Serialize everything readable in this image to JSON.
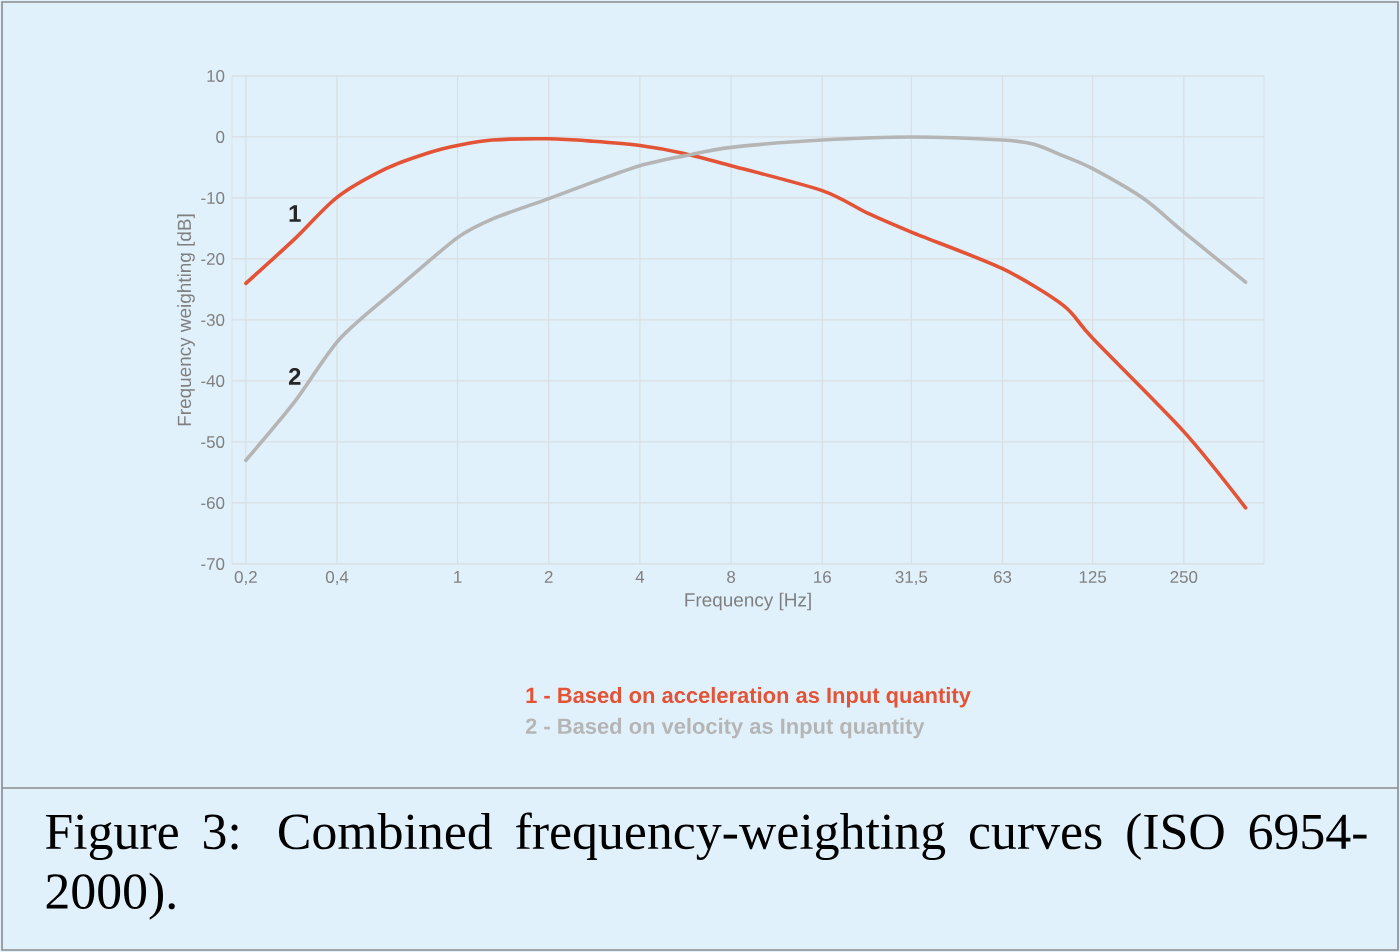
{
  "chart_data": {
    "type": "line",
    "xlabel": "Frequency [Hz]",
    "ylabel": "Frequency weighting [dB]",
    "log": "x",
    "xlim": [
      0.18,
      460
    ],
    "ylim": [
      -70,
      10
    ],
    "xticks": [
      {
        "value": 0.2,
        "label": "0,2"
      },
      {
        "value": 0.4,
        "label": "0,4"
      },
      1,
      2,
      4,
      8,
      16,
      {
        "value": 31.5,
        "label": "31,5"
      },
      63,
      125,
      250
    ],
    "yticks": [
      -70,
      -60,
      -50,
      -40,
      -30,
      -20,
      -10,
      0,
      10
    ],
    "grid": true,
    "legend": "bottom",
    "marker": "none",
    "line_style": "solid",
    "series": [
      {
        "name": "1 - Based on acceleration as Input quantity",
        "color": "#e35336",
        "x": [
          0.2,
          0.29,
          0.4,
          0.58,
          0.79,
          1,
          1.3,
          2,
          2.8,
          4,
          5.6,
          8,
          16,
          22.6,
          31.5,
          63,
          100,
          125,
          250,
          400
        ],
        "values": [
          -24.0,
          -16.7,
          -9.9,
          -5.2,
          -2.7,
          -1.4,
          -0.5,
          -0.3,
          -0.7,
          -1.4,
          -2.7,
          -4.7,
          -8.8,
          -12.5,
          -15.6,
          -21.6,
          -27.6,
          -33.0,
          -48.3,
          -60.8
        ]
      },
      {
        "name": "2 - Based on velocity as Input quantity",
        "color": "#b5b5b5",
        "x": [
          0.2,
          0.29,
          0.41,
          0.65,
          1,
          1.31,
          2,
          2.8,
          4,
          5.6,
          8,
          16,
          31.5,
          63,
          80,
          100,
          125,
          184,
          250,
          400
        ],
        "values": [
          -53.0,
          -43.4,
          -33.0,
          -24.3,
          -16.5,
          -13.4,
          -10.1,
          -7.4,
          -4.7,
          -3.1,
          -1.7,
          -0.5,
          0,
          -0.5,
          -1.2,
          -3.1,
          -5.2,
          -10.1,
          -15.6,
          -23.8
        ]
      }
    ],
    "annotations": [
      "1",
      "2",
      "Figure 3: Combined frequency-weighting curves (ISO 6954-2000)."
    ]
  }
}
